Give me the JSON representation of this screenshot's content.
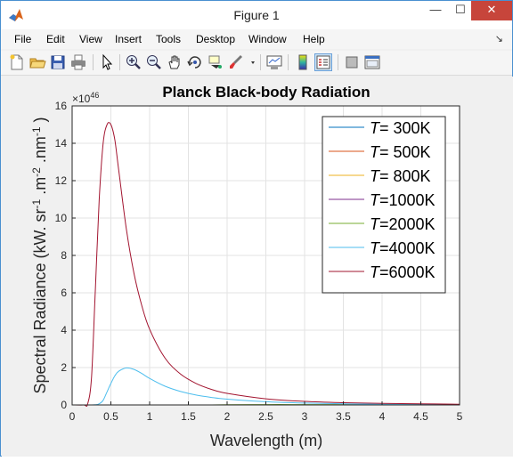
{
  "window": {
    "title": "Figure 1",
    "controls": {
      "minimize": "—",
      "maximize": "☐",
      "close": "✕"
    }
  },
  "menu": [
    "File",
    "Edit",
    "View",
    "Insert",
    "Tools",
    "Desktop",
    "Window",
    "Help"
  ],
  "toolbar": {
    "buttons": [
      "new-figure-icon",
      "open-file-icon",
      "save-icon",
      "print-icon",
      "edit-plot-arrow-icon",
      "zoom-in-icon",
      "zoom-out-icon",
      "pan-hand-icon",
      "rotate-3d-icon",
      "data-cursor-icon",
      "brush-icon",
      "link-plot-icon",
      "insert-colorbar-icon",
      "insert-legend-icon",
      "hide-plot-tools-icon",
      "show-plot-tools-icon"
    ]
  },
  "chart_data": {
    "type": "line",
    "title": "Planck Black-body Radiation",
    "xlabel": "Wavelength (m)",
    "ylabel": "Spectral Radiance (kW. sr^-1 .m^-2 .nm^-1 )",
    "y_exponent_label": "×10^46",
    "xlim": [
      0,
      5
    ],
    "ylim": [
      0,
      16
    ],
    "xticks": [
      "0",
      "0.5",
      "1",
      "1.5",
      "2",
      "2.5",
      "3",
      "3.5",
      "4",
      "4.5",
      "5"
    ],
    "yticks": [
      "0",
      "2",
      "4",
      "6",
      "8",
      "10",
      "12",
      "14",
      "16"
    ],
    "grid": true,
    "legend_position": "top-right",
    "x": [
      0.15,
      0.2,
      0.25,
      0.3,
      0.35,
      0.4,
      0.45,
      0.5,
      0.55,
      0.6,
      0.7,
      0.8,
      0.9,
      1.0,
      1.2,
      1.4,
      1.6,
      1.8,
      2.0,
      2.5,
      3.0,
      3.5,
      4.0,
      4.5,
      5.0
    ],
    "series": [
      {
        "name": "T= 300K",
        "color": "#0072bd",
        "values": [
          0,
          0,
          0,
          0,
          0,
          0,
          0,
          0,
          0,
          0,
          0,
          0,
          0,
          0,
          0,
          0,
          0,
          0,
          0,
          0,
          0,
          0,
          0,
          0,
          0
        ]
      },
      {
        "name": "T= 500K",
        "color": "#d95319",
        "values": [
          0,
          0,
          0,
          0,
          0,
          0,
          0,
          0,
          0,
          0,
          0,
          0,
          0,
          0,
          0,
          0,
          0,
          0,
          0,
          0,
          0,
          0,
          0,
          0,
          0
        ]
      },
      {
        "name": "T= 800K",
        "color": "#edb120",
        "values": [
          0,
          0,
          0,
          0,
          0,
          0,
          0,
          0,
          0,
          0,
          0,
          0,
          0,
          0,
          0,
          0,
          0,
          0,
          0,
          0,
          0,
          0,
          0,
          0,
          0
        ]
      },
      {
        "name": "T=1000K",
        "color": "#7e2f8e",
        "values": [
          0,
          0,
          0,
          0,
          0,
          0,
          0,
          0,
          0,
          0,
          0,
          0,
          0,
          0,
          0,
          0,
          0,
          0,
          0,
          0,
          0,
          0,
          0,
          0,
          0
        ]
      },
      {
        "name": "T=2000K",
        "color": "#77ac30",
        "values": [
          0,
          0,
          0,
          0,
          0,
          0,
          0,
          0,
          0,
          0,
          0,
          0,
          0,
          0,
          0,
          0,
          0,
          0,
          0.01,
          0.02,
          0.02,
          0.02,
          0.02,
          0.01,
          0.01
        ]
      },
      {
        "name": "T=4000K",
        "color": "#4dbeee",
        "values": [
          0,
          0,
          0,
          0.01,
          0.06,
          0.25,
          0.7,
          1.15,
          1.55,
          1.8,
          1.98,
          1.9,
          1.68,
          1.42,
          1.0,
          0.72,
          0.53,
          0.4,
          0.31,
          0.17,
          0.1,
          0.06,
          0.04,
          0.03,
          0.02
        ]
      },
      {
        "name": "T=6000K",
        "color": "#a2142f",
        "values": [
          0,
          0.05,
          1.5,
          6.2,
          11.0,
          14.0,
          15.0,
          15.0,
          14.2,
          12.6,
          9.4,
          7.0,
          5.3,
          4.05,
          2.5,
          1.65,
          1.15,
          0.83,
          0.62,
          0.33,
          0.19,
          0.12,
          0.08,
          0.06,
          0.04
        ]
      }
    ]
  }
}
